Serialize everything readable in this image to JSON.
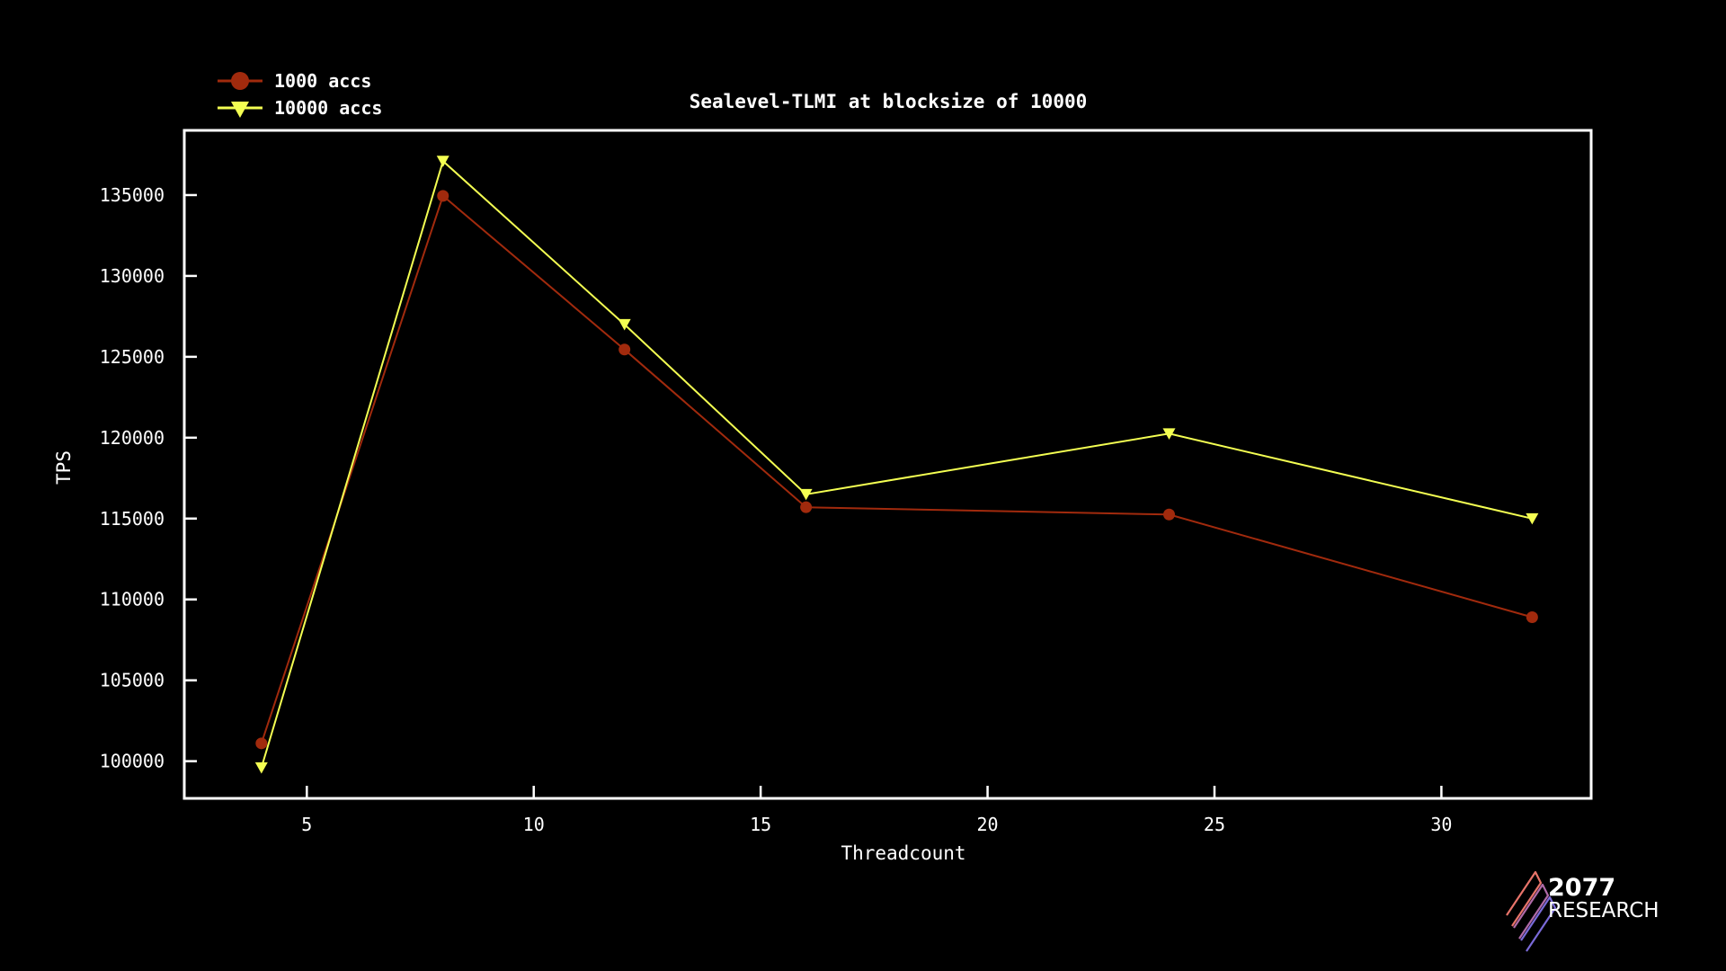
{
  "chart_data": {
    "type": "line",
    "title": "Sealevel-TLMI at blocksize of 10000",
    "xlabel": "Threadcount",
    "ylabel": "TPS",
    "x": [
      4,
      8,
      12,
      16,
      24,
      32
    ],
    "xlim": [
      2.3,
      33.3
    ],
    "ylim": [
      97700,
      139000
    ],
    "xticks": [
      5,
      10,
      15,
      20,
      25,
      30
    ],
    "xtick_labels": [
      "5",
      "10",
      "15",
      "20",
      "25",
      "30"
    ],
    "yticks": [
      100000,
      105000,
      110000,
      115000,
      120000,
      125000,
      130000,
      135000
    ],
    "ytick_labels": [
      "100000",
      "105000",
      "110000",
      "115000",
      "120000",
      "125000",
      "130000",
      "135000"
    ],
    "grid": false,
    "legend_position": "top-left",
    "series": [
      {
        "name": "1000 accs",
        "values": [
          101100,
          134950,
          125450,
          115700,
          115250,
          108900
        ],
        "color": "#a12a0d",
        "marker": "circle"
      },
      {
        "name": "10000 accs",
        "values": [
          99600,
          137100,
          127000,
          116500,
          120250,
          115000
        ],
        "color": "#f4ff52",
        "marker": "triangle-down"
      }
    ]
  },
  "logo": {
    "number": "2077",
    "word": "RESEARCH",
    "stripe_colors": [
      "#e8746a",
      "#b06aa8",
      "#7a6ad8"
    ]
  }
}
